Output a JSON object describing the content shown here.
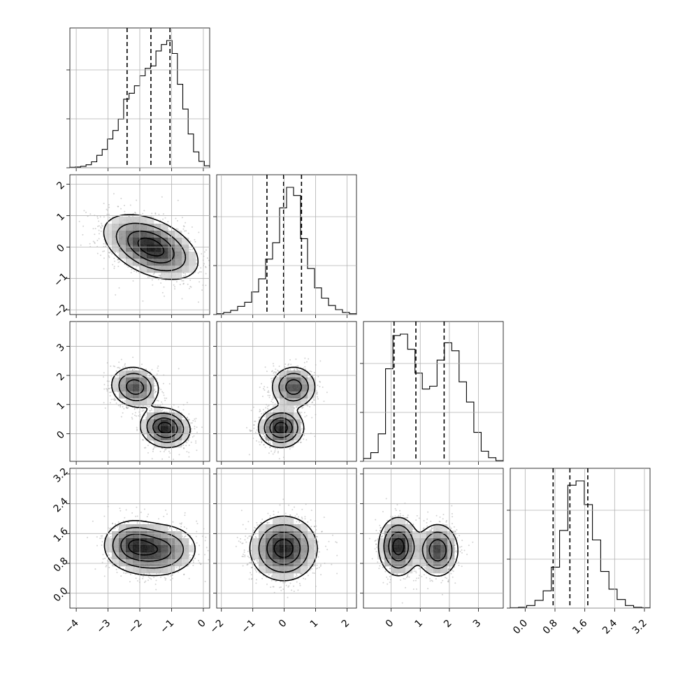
{
  "chart_data": {
    "type": "corner",
    "parameters": 4,
    "title": "",
    "grid": true,
    "color": "#000000",
    "point_color": "#808080",
    "quantile_lines": "dashed",
    "axes": [
      {
        "range": [
          -4.2,
          0.2
        ],
        "ticks": [
          -4,
          -3,
          -2,
          -1,
          0
        ],
        "tick_labels": [
          "−4",
          "−3",
          "−2",
          "−1",
          "0"
        ],
        "quantiles": [
          -2.4,
          -1.65,
          -1.05
        ],
        "histogram": [
          1,
          1.5,
          3,
          6,
          12,
          25,
          37,
          58,
          75,
          98,
          138,
          150,
          165,
          185,
          200,
          205,
          235,
          248,
          256,
          230,
          168,
          118,
          68,
          32,
          13,
          4
        ]
      },
      {
        "range": [
          -2.15,
          2.3
        ],
        "ticks": [
          -2,
          -1,
          0,
          1,
          2
        ],
        "tick_labels": [
          "−2",
          "−1",
          "0",
          "1",
          "2"
        ],
        "quantiles": [
          -0.55,
          -0.02,
          0.55
        ],
        "histogram": [
          2,
          5,
          10,
          20,
          30,
          55,
          87,
          135,
          175,
          260,
          310,
          290,
          185,
          112,
          65,
          40,
          22,
          12,
          5,
          2
        ]
      },
      {
        "range": [
          -0.95,
          3.85
        ],
        "ticks": [
          0,
          1,
          2,
          3
        ],
        "tick_labels": [
          "0",
          "1",
          "2",
          "3"
        ],
        "quantiles": [
          0.1,
          0.85,
          1.82
        ],
        "histogram": [
          4,
          12,
          38,
          128,
          174,
          176,
          155,
          122,
          100,
          104,
          140,
          164,
          153,
          110,
          82,
          40,
          14,
          5,
          1
        ]
      },
      {
        "range": [
          -0.4,
          3.35
        ],
        "ticks": [
          0.0,
          0.8,
          1.6,
          2.4,
          3.2
        ],
        "tick_labels": [
          "0.0",
          "0.8",
          "1.6",
          "2.4",
          "3.2"
        ],
        "quantiles": [
          0.75,
          1.2,
          1.68
        ],
        "histogram": [
          1,
          2,
          6,
          18,
          40,
          95,
          180,
          285,
          295,
          240,
          158,
          85,
          44,
          20,
          6,
          2,
          1
        ]
      }
    ]
  }
}
